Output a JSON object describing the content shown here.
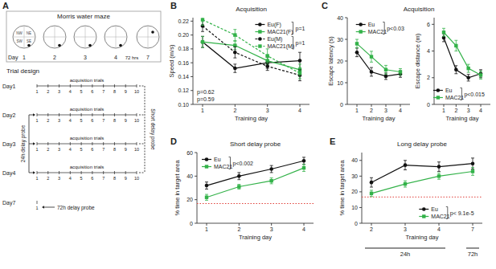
{
  "chart_data": [
    {
      "type": "line",
      "panel": "B",
      "title": "Acquisition",
      "x_label": "Training day",
      "y_label": "Speed (m/s)",
      "categories": [
        "1",
        "2",
        "3",
        "4"
      ],
      "ylim": [
        0.1,
        0.225
      ],
      "yticks": [
        {
          "value": 0.1,
          "label": "0.10"
        },
        {
          "value": 0.12,
          "label": "0.12"
        },
        {
          "value": 0.14,
          "label": "0.14"
        },
        {
          "value": 0.16,
          "label": "0.16"
        },
        {
          "value": 0.18,
          "label": "0.18"
        },
        {
          "value": 0.2,
          "label": "0.20"
        },
        {
          "value": 0.22,
          "label": "0.22"
        }
      ],
      "legend": "upper right",
      "annotations": [
        "p=0.62",
        "p=0.59",
        "p=1",
        "p=1"
      ],
      "series": [
        {
          "name": "Eu(F)",
          "color": "#111111",
          "line_style": "solid",
          "marker": "circle",
          "values": [
            0.19,
            0.152,
            0.16,
            0.163
          ],
          "errors": [
            0.008,
            0.006,
            0.008,
            0.012
          ]
        },
        {
          "name": "MAC21(F)",
          "color": "#33b249",
          "line_style": "solid",
          "marker": "square",
          "values": [
            0.19,
            0.185,
            0.163,
            0.15
          ],
          "errors": [
            0.008,
            0.006,
            0.006,
            0.008
          ]
        },
        {
          "name": "Eu(M)",
          "color": "#111111",
          "line_style": "dashed",
          "marker": "circle",
          "values": [
            0.213,
            0.175,
            0.155,
            0.142
          ],
          "errors": [
            0.008,
            0.008,
            0.006,
            0.008
          ]
        },
        {
          "name": "MAC21(M)",
          "color": "#33b249",
          "line_style": "dashed",
          "marker": "square",
          "values": [
            0.222,
            0.2,
            0.17,
            0.145
          ],
          "errors": [
            0.008,
            0.008,
            0.01,
            0.008
          ]
        }
      ]
    },
    {
      "type": "line",
      "panel": "C",
      "title": "Acquisition",
      "x_label": "Training day",
      "y_label": "Escape latency (s)",
      "categories": [
        "1",
        "2",
        "3",
        "4"
      ],
      "ylim": [
        0,
        40
      ],
      "yticks": [
        0,
        10,
        20,
        30,
        40
      ],
      "legend": "upper right",
      "annotations": [
        "p<0.03"
      ],
      "series": [
        {
          "name": "Eu",
          "color": "#111111",
          "line_style": "solid",
          "marker": "circle",
          "values": [
            24,
            15,
            13,
            14
          ],
          "errors": [
            2,
            2,
            1.5,
            1.5
          ]
        },
        {
          "name": "MAC21",
          "color": "#33b249",
          "line_style": "solid",
          "marker": "square",
          "values": [
            28,
            22,
            16,
            15
          ],
          "errors": [
            2,
            2.5,
            2,
            1.5
          ]
        }
      ]
    },
    {
      "type": "line",
      "x_label": "Training day",
      "y_label": "Escape distance (m)",
      "categories": [
        "1",
        "2",
        "3",
        "4"
      ],
      "ylim": [
        0,
        6.5
      ],
      "yticks": [
        0,
        2,
        4,
        6
      ],
      "legend": "lower right",
      "annotations": [
        "p<0.015"
      ],
      "series": [
        {
          "name": "Eu",
          "color": "#111111",
          "line_style": "solid",
          "marker": "circle",
          "values": [
            5.0,
            2.6,
            2.0,
            2.3
          ],
          "errors": [
            0.3,
            0.3,
            0.25,
            0.3
          ]
        },
        {
          "name": "MAC21",
          "color": "#33b249",
          "line_style": "solid",
          "marker": "square",
          "values": [
            5.4,
            4.4,
            2.7,
            2.2
          ],
          "errors": [
            0.3,
            0.4,
            0.3,
            0.3
          ]
        }
      ]
    },
    {
      "type": "line",
      "panel": "D",
      "title": "Short delay probe",
      "x_label": "Training day",
      "y_label": "% time in target area",
      "categories": [
        "1",
        "2",
        "3",
        "4"
      ],
      "ylim": [
        0,
        60
      ],
      "yticks": [
        0,
        20,
        40,
        60
      ],
      "legend": "upper left",
      "annotations": [
        "p<0.002"
      ],
      "reference_line": 16.7,
      "series": [
        {
          "name": "Eu",
          "color": "#111111",
          "line_style": "solid",
          "marker": "circle",
          "values": [
            32,
            40,
            46,
            53
          ],
          "errors": [
            3,
            3,
            3,
            3
          ]
        },
        {
          "name": "MAC21",
          "color": "#33b249",
          "line_style": "solid",
          "marker": "square",
          "values": [
            22,
            31,
            36,
            47
          ],
          "errors": [
            2.5,
            2,
            2.5,
            3
          ]
        }
      ]
    },
    {
      "type": "line",
      "panel": "E",
      "title": "Long delay probe",
      "x_label": "Training day",
      "y_label": "% time in target area",
      "categories": [
        "2",
        "3",
        "4",
        "7"
      ],
      "ylim": [
        0,
        45
      ],
      "yticks": [
        0,
        10,
        20,
        30,
        40
      ],
      "legend": "lower right",
      "annotations": [
        "p< 9.1e-5"
      ],
      "reference_line": 16.7,
      "x_groups": [
        "24h",
        "72h"
      ],
      "series": [
        {
          "name": "Eu",
          "color": "#111111",
          "line_style": "solid",
          "marker": "circle",
          "values": [
            26,
            37,
            36,
            38
          ],
          "errors": [
            3,
            3,
            3,
            3.5
          ]
        },
        {
          "name": "MAC21",
          "color": "#33b249",
          "line_style": "solid",
          "marker": "square",
          "values": [
            19,
            25,
            30,
            33
          ],
          "errors": [
            2,
            2,
            2,
            2.5
          ]
        }
      ]
    }
  ],
  "diagram": {
    "panel": "A",
    "maze": {
      "title": "Morris water maze",
      "quadrants": [
        "NW",
        "NE",
        "SW",
        "SE"
      ],
      "day_label": "Day",
      "days": [
        "1",
        "2",
        "3",
        "4",
        "7"
      ],
      "gap_label": "72 hrs"
    },
    "trial_design": {
      "title": "Trial design",
      "rows": [
        {
          "day": "Day1",
          "label": "acquisition trials",
          "trials": [
            "1",
            "2",
            "3",
            "4",
            "5",
            "6",
            "7",
            "8",
            "9",
            "10"
          ]
        },
        {
          "day": "Day2",
          "label": "acquisition trials",
          "trials": [
            "1",
            "2",
            "3",
            "4",
            "5",
            "6",
            "7",
            "8",
            "9",
            "10"
          ]
        },
        {
          "day": "Day3",
          "label": "acquisition trials",
          "trials": [
            "1",
            "2",
            "3",
            "4",
            "5",
            "6",
            "7",
            "8",
            "9",
            "10"
          ]
        },
        {
          "day": "Day4",
          "label": "acquisition trials",
          "trials": [
            "1",
            "2",
            "3",
            "4",
            "5",
            "6",
            "7",
            "8",
            "9",
            "10"
          ]
        }
      ],
      "day7": {
        "day": "Day7",
        "trials": [
          "1"
        ]
      },
      "probes": {
        "short": "Short delay probe",
        "delay24": "24h delay probe",
        "delay72": "72h delay probe"
      }
    }
  }
}
